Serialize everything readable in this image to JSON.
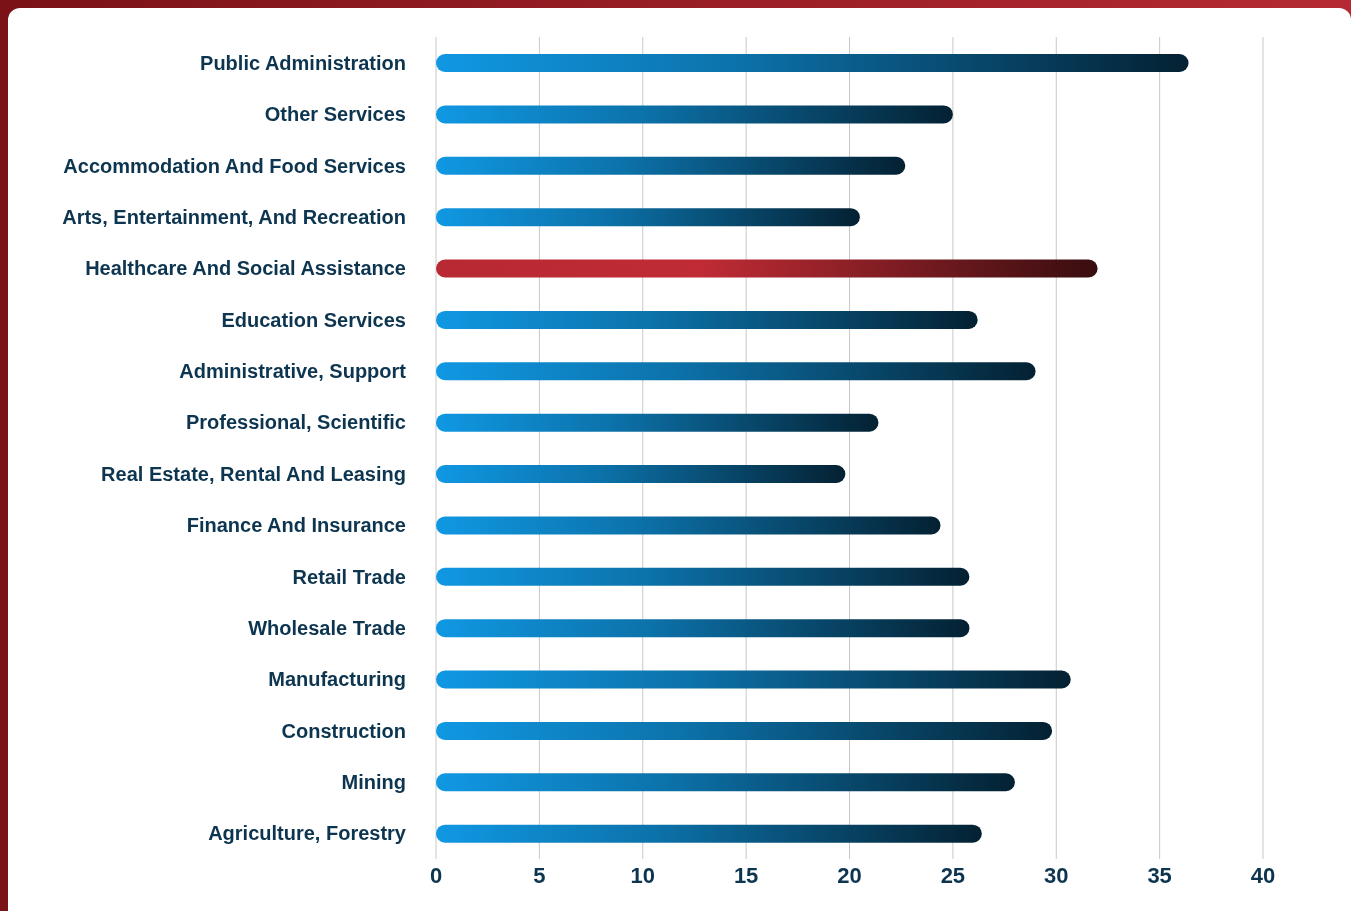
{
  "chart_data": {
    "type": "bar",
    "orientation": "horizontal",
    "categories": [
      "Public Administration",
      "Other Services",
      "Accommodation And Food Services",
      "Arts, Entertainment, And Recreation",
      "Healthcare And Social Assistance",
      "Education Services",
      "Administrative, Support",
      "Professional, Scientific",
      "Real Estate, Rental And Leasing",
      "Finance And Insurance",
      "Retail Trade",
      "Wholesale Trade",
      "Manufacturing",
      "Construction",
      "Mining",
      "Agriculture, Forestry"
    ],
    "values": [
      36.4,
      25.0,
      22.7,
      20.5,
      32.0,
      26.2,
      29.0,
      21.4,
      19.8,
      24.4,
      25.8,
      25.8,
      30.7,
      29.8,
      28.0,
      26.4
    ],
    "colors": [
      "#0a5f8e",
      "#0a5f8e",
      "#0a5f8e",
      "#0a5f8e",
      "#a0242c",
      "#0a5f8e",
      "#0a5f8e",
      "#0a5f8e",
      "#0a5f8e",
      "#0a5f8e",
      "#0a5f8e",
      "#0a5f8e",
      "#0a5f8e",
      "#0a5f8e",
      "#0a5f8e",
      "#0a5f8e"
    ],
    "xlim": [
      0,
      40
    ],
    "xticks": [
      0,
      5,
      10,
      15,
      20,
      25,
      30,
      35,
      40
    ],
    "grid": "x",
    "legend": false
  }
}
